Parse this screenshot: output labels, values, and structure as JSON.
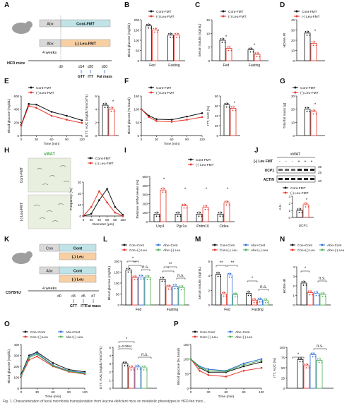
{
  "figure": {
    "panel_letters": [
      "A",
      "B",
      "C",
      "D",
      "E",
      "F",
      "G",
      "H",
      "I",
      "J",
      "K",
      "L",
      "M",
      "N",
      "O",
      "P"
    ],
    "caption": "Fig. 1. Characterization of fecal microbiota transplantation from leucine-deficient mice on metabolic phenotypes in HFD-fed mice..."
  },
  "colors": {
    "black": "#111111",
    "red": "#e8352a",
    "blue": "#2f6fd6",
    "green": "#4caf50",
    "teal_box": "#bfe3e6",
    "orange_box": "#f7cfa3",
    "grey_box": "#d9d9d9"
  },
  "panel_A": {
    "box1_left": "Abx",
    "box1_right": "Cont-FMT",
    "box2_left": "Abx",
    "box2_right": "(-) Leu-FMT",
    "mouse_label": "HFD mice",
    "duration": "4 weeks",
    "days": [
      "d0",
      "d14",
      "d20",
      "d30"
    ],
    "tests": [
      "GTT",
      "ITT",
      "Fat mass"
    ]
  },
  "panel_K": {
    "box1": "Con",
    "box2_top": "Cont",
    "box2_bottom": "(-) Leu",
    "box3": "Abx",
    "box4_top": "Cont",
    "box4_bottom": "(-) Leu",
    "mouse_label": "C57B/6J",
    "duration": "4 weeks",
    "days": [
      "d0",
      "d3",
      "d5",
      "d7"
    ],
    "tests": [
      "GTT",
      "ITT",
      "Fat mass"
    ]
  },
  "panel_H": {
    "title": "sWAT",
    "row1": "Cont-FMT",
    "row2": "(-) Leu-FMT"
  },
  "panel_J": {
    "title": "sWAT",
    "row_leu": "(-) Leu FMT",
    "signs": [
      "-",
      "-",
      "-",
      "+",
      "+",
      "+"
    ],
    "bands": [
      "UCP1",
      "ACTIN"
    ],
    "mw": [
      "35",
      "25",
      "40"
    ]
  },
  "chart_data": [
    {
      "panel": "B",
      "type": "bar",
      "ylabel": "Blood glucose (mg/dL)",
      "categories": [
        "Fed",
        "Fasting"
      ],
      "ylim": [
        0,
        200
      ],
      "yticks": [
        "0",
        "50",
        "100",
        "150",
        "200"
      ],
      "series": [
        {
          "name": "Cont-FMT",
          "values": [
            170,
            125
          ]
        },
        {
          "name": "(-) Leu-FMT",
          "values": [
            150,
            125
          ]
        }
      ],
      "annotations": [
        "*"
      ]
    },
    {
      "panel": "C",
      "type": "bar",
      "ylabel": "Serum insulin (ng/mL)",
      "categories": [
        "Fed",
        "Fasting"
      ],
      "ylim": [
        0,
        15
      ],
      "yticks": [
        "0",
        "5",
        "10",
        "15"
      ],
      "series": [
        {
          "name": "Cont-FMT",
          "values": [
            7.5,
            4
          ]
        },
        {
          "name": "(-) Leu-FMT",
          "values": [
            4.5,
            2.3
          ]
        }
      ],
      "annotations": [
        "*",
        "*"
      ]
    },
    {
      "panel": "D",
      "type": "bar",
      "ylabel": "HOMA-IR",
      "categories": [
        ""
      ],
      "ylim": [
        0,
        40
      ],
      "yticks": [
        "0",
        "10",
        "20",
        "30",
        "40"
      ],
      "series": [
        {
          "name": "Cont-FMT",
          "values": [
            27
          ]
        },
        {
          "name": "(-) Leu-FMT",
          "values": [
            17
          ]
        }
      ],
      "annotations": [
        "*"
      ]
    },
    {
      "panel": "E",
      "type": "line",
      "ylabel": "Blood glucose (mg/dL)",
      "xlabel": "Time (min)",
      "x": [
        0,
        15,
        30,
        60,
        90,
        120
      ],
      "xticks": [
        "0",
        "30",
        "60",
        "90",
        "120"
      ],
      "ylim": [
        0,
        600
      ],
      "yticks": [
        "0",
        "200",
        "400",
        "600"
      ],
      "series": [
        {
          "name": "Cont-FMT",
          "values": [
            160,
            480,
            470,
            360,
            300,
            230
          ]
        },
        {
          "name": "(-) Leu-FMT",
          "values": [
            150,
            450,
            420,
            300,
            240,
            190
          ]
        }
      ]
    },
    {
      "panel": "E2",
      "type": "bar",
      "ylabel": "GTT, AUC (mg/dL*min/10^4)",
      "categories": [
        ""
      ],
      "ylim": [
        0,
        6
      ],
      "yticks": [
        "0",
        "2",
        "4",
        "6"
      ],
      "series": [
        {
          "name": "Cont-FMT",
          "values": [
            4.6
          ]
        },
        {
          "name": "(-) Leu-FMT",
          "values": [
            4.0
          ]
        }
      ],
      "annotations": [
        "*"
      ]
    },
    {
      "panel": "F",
      "type": "line",
      "ylabel": "Blood glucose (% basal)",
      "xlabel": "Time (min)",
      "x": [
        0,
        15,
        30,
        60,
        90,
        120
      ],
      "xticks": [
        "0",
        "30",
        "60",
        "90",
        "120"
      ],
      "ylim": [
        0,
        150
      ],
      "yticks": [
        "0",
        "50",
        "100",
        "150"
      ],
      "series": [
        {
          "name": "Cont-FMT",
          "values": [
            100,
            75,
            62,
            60,
            72,
            85
          ]
        },
        {
          "name": "(-) Leu-FMT",
          "values": [
            100,
            70,
            55,
            52,
            60,
            70
          ]
        }
      ]
    },
    {
      "panel": "F2",
      "type": "bar",
      "ylabel": "ITT, AUC (%)",
      "categories": [
        ""
      ],
      "ylim": [
        0,
        80
      ],
      "yticks": [
        "0",
        "20",
        "40",
        "60",
        "80"
      ],
      "series": [
        {
          "name": "Cont-FMT",
          "values": [
            62
          ]
        },
        {
          "name": "(-) Leu-FMT",
          "values": [
            55
          ]
        }
      ],
      "annotations": [
        "*"
      ]
    },
    {
      "panel": "G",
      "type": "bar",
      "ylabel": "Total fat mass (g)",
      "categories": [
        ""
      ],
      "ylim": [
        0,
        30
      ],
      "yticks": [
        "0",
        "10",
        "20",
        "30"
      ],
      "series": [
        {
          "name": "Cont-FMT",
          "values": [
            20
          ]
        },
        {
          "name": "(-) Leu-FMT",
          "values": [
            18
          ]
        }
      ],
      "annotations": [
        "*"
      ]
    },
    {
      "panel": "H2",
      "type": "line",
      "ylabel": "Frequency (%)",
      "xlabel": "Diameter (μm)",
      "x": [
        0,
        20,
        40,
        60,
        80,
        100
      ],
      "xticks": [
        "0",
        "20",
        "40",
        "60",
        "80",
        "100"
      ],
      "ylim": [
        0,
        30
      ],
      "yticks": [
        "0",
        "10",
        "20",
        "30"
      ],
      "series": [
        {
          "name": "Cont-FMT",
          "values": [
            0,
            2,
            14,
            24,
            8,
            1
          ]
        },
        {
          "name": "(-) Leu-FMT",
          "values": [
            0,
            8,
            22,
            12,
            3,
            0
          ]
        }
      ]
    },
    {
      "panel": "I",
      "type": "bar",
      "ylabel": "Relative mRNA levels (%)",
      "categories": [
        "Ucp1",
        "Pgc1a",
        "Prdm16",
        "Cidea"
      ],
      "ylim": [
        0,
        600
      ],
      "yticks": [
        "0",
        "100",
        "200",
        "300",
        "400",
        "600"
      ],
      "series": [
        {
          "name": "Cont-FMT",
          "values": [
            100,
            100,
            100,
            100
          ]
        },
        {
          "name": "(-) Leu-FMT",
          "values": [
            420,
            210,
            190,
            250
          ]
        }
      ],
      "annotations": [
        "*",
        "*",
        "*",
        "*"
      ]
    },
    {
      "panel": "J2",
      "type": "bar",
      "ylabel": "A.U.",
      "xlabel": "UCP1",
      "categories": [
        ""
      ],
      "ylim": [
        0,
        3
      ],
      "yticks": [
        "0",
        "1",
        "2",
        "3"
      ],
      "series": [
        {
          "name": "Cont-FMT",
          "values": [
            1
          ]
        },
        {
          "name": "(-) Leu-FMT",
          "values": [
            1.8
          ]
        }
      ],
      "annotations": [
        "*"
      ]
    },
    {
      "panel": "L",
      "type": "bar",
      "ylabel": "Blood glucose (mg/dL)",
      "categories": [
        "Fed",
        "Fasting"
      ],
      "ylim": [
        0,
        200
      ],
      "yticks": [
        "0",
        "50",
        "100",
        "150",
        "200"
      ],
      "series": [
        {
          "name": "Con+Cont",
          "values": [
            160,
            118
          ]
        },
        {
          "name": "Con+(-) Leu",
          "values": [
            125,
            82
          ]
        },
        {
          "name": "Abx+Cont",
          "values": [
            128,
            85
          ]
        },
        {
          "name": "Abx+(-) Leu",
          "values": [
            126,
            80
          ]
        }
      ],
      "annotations": [
        "*",
        "**",
        "n.s.",
        "*",
        "**",
        "n.s."
      ]
    },
    {
      "panel": "M",
      "type": "bar",
      "ylabel": "Serum insulin (ng/mL)",
      "categories": [
        "Fed",
        "Fasting"
      ],
      "ylim": [
        0,
        6
      ],
      "yticks": [
        "0",
        "2",
        "4",
        "6"
      ],
      "series": [
        {
          "name": "Con+Cont",
          "values": [
            4.2,
            1.6
          ]
        },
        {
          "name": "Con+(-) Leu",
          "values": [
            1.5,
            0.6
          ]
        },
        {
          "name": "Abx+Cont",
          "values": [
            4.1,
            0.7
          ]
        },
        {
          "name": "Abx+(-) Leu",
          "values": [
            1.4,
            0.6
          ]
        }
      ],
      "annotations": [
        "**",
        "**",
        "*",
        "n.s."
      ]
    },
    {
      "panel": "N",
      "type": "bar",
      "ylabel": "HOMA-IR",
      "categories": [
        ""
      ],
      "ylim": [
        0,
        4
      ],
      "yticks": [
        "0",
        "1",
        "2",
        "3",
        "4"
      ],
      "series": [
        {
          "name": "Con+Cont",
          "values": [
            2.3
          ]
        },
        {
          "name": "Con+(-) Leu",
          "values": [
            1.3
          ]
        },
        {
          "name": "Abx+Cont",
          "values": [
            1.2
          ]
        },
        {
          "name": "Abx+(-) Leu",
          "values": [
            1.1
          ]
        }
      ],
      "annotations": [
        "*",
        "n.s."
      ]
    },
    {
      "panel": "O",
      "type": "line",
      "ylabel": "Blood glucose (mg/dL)",
      "xlabel": "Time (min)",
      "x": [
        0,
        15,
        30,
        60,
        90,
        120
      ],
      "xticks": [
        "0",
        "30",
        "60",
        "90",
        "120"
      ],
      "ylim": [
        0,
        400
      ],
      "yticks": [
        "0",
        "100",
        "200",
        "300",
        "400"
      ],
      "series": [
        {
          "name": "Con+Cont",
          "values": [
            130,
            300,
            330,
            230,
            170,
            150
          ]
        },
        {
          "name": "Con+(-) Leu",
          "values": [
            110,
            260,
            290,
            200,
            150,
            130
          ]
        },
        {
          "name": "Abx+Cont",
          "values": [
            120,
            290,
            320,
            210,
            160,
            140
          ]
        },
        {
          "name": "Abx+(-) Leu",
          "values": [
            115,
            280,
            310,
            205,
            155,
            135
          ]
        }
      ]
    },
    {
      "panel": "O2",
      "type": "bar",
      "ylabel": "GTT, AUC (mg/dL*min/10^4)",
      "categories": [
        ""
      ],
      "ylim": [
        0,
        5
      ],
      "yticks": [
        "0",
        "1",
        "2",
        "3",
        "4",
        "5"
      ],
      "series": [
        {
          "name": "Con+Cont",
          "values": [
            3.0
          ]
        },
        {
          "name": "Con+(-) Leu",
          "values": [
            2.5
          ]
        },
        {
          "name": "Abx+Cont",
          "values": [
            2.6
          ]
        },
        {
          "name": "Abx+(-) Leu",
          "values": [
            2.5
          ]
        }
      ],
      "annotations": [
        "*",
        "p=0.0864",
        "n.s."
      ]
    },
    {
      "panel": "P",
      "type": "line",
      "ylabel": "Blood glucose (% basal)",
      "xlabel": "Time (min)",
      "x": [
        0,
        15,
        30,
        60,
        90,
        120
      ],
      "xticks": [
        "0",
        "30",
        "60",
        "90",
        "120"
      ],
      "ylim": [
        0,
        150
      ],
      "yticks": [
        "0",
        "50",
        "100",
        "150"
      ],
      "series": [
        {
          "name": "Con+Cont",
          "values": [
            100,
            70,
            55,
            55,
            75,
            90
          ]
        },
        {
          "name": "Con+(-) Leu",
          "values": [
            100,
            60,
            45,
            40,
            60,
            70
          ]
        },
        {
          "name": "Abx+Cont",
          "values": [
            100,
            75,
            65,
            60,
            85,
            100
          ]
        },
        {
          "name": "Abx+(-) Leu",
          "values": [
            100,
            72,
            60,
            58,
            80,
            95
          ]
        }
      ]
    },
    {
      "panel": "P2",
      "type": "bar",
      "ylabel": "ITT, AUC (%)",
      "categories": [
        ""
      ],
      "ylim": [
        0,
        100
      ],
      "yticks": [
        "0",
        "25",
        "50",
        "75",
        "100"
      ],
      "series": [
        {
          "name": "Con+Cont",
          "values": [
            70
          ]
        },
        {
          "name": "Con+(-) Leu",
          "values": [
            55
          ]
        },
        {
          "name": "Abx+Cont",
          "values": [
            82
          ]
        },
        {
          "name": "Abx+(-) Leu",
          "values": [
            68
          ]
        }
      ],
      "annotations": [
        "*",
        "n.s."
      ]
    }
  ]
}
